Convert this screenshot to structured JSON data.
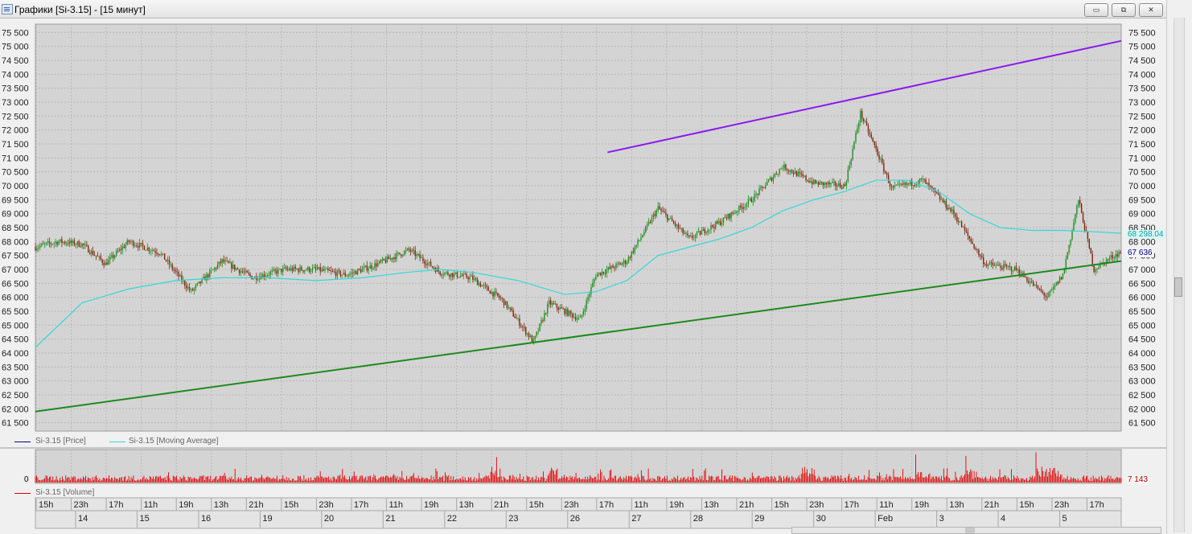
{
  "window": {
    "title": "Графики [Si-3.15] - [15 минут]",
    "buttons": {
      "minimize": "▭",
      "restore": "⧉",
      "close": "✕"
    }
  },
  "colors": {
    "plot_bg": "#d4d4d4",
    "grid": "#b8b8b8",
    "candle_up": "#1f8f1f",
    "candle_down": "#7b2a10",
    "moving_average": "#35d7d7",
    "support_line": "#1d8a1d",
    "resistance_line": "#8a19ee",
    "volume": "#e00000"
  },
  "legend": {
    "price": "Si-3.15 [Price]",
    "moving_average": "Si-3.15 [Moving Average]",
    "volume": "Si-3.15 [Volume]"
  },
  "price_axis": {
    "labels": [
      "75 500",
      "75 000",
      "74 500",
      "74 000",
      "73 500",
      "73 000",
      "72 500",
      "72 000",
      "71 500",
      "71 000",
      "70 500",
      "70 000",
      "69 500",
      "69 000",
      "68 500",
      "68 000",
      "67 500",
      "67 000",
      "66 500",
      "66 000",
      "65 500",
      "65 000",
      "64 500",
      "64 000",
      "63 500",
      "63 000",
      "62 500",
      "62 000",
      "61 500"
    ],
    "current_price": "67 636",
    "ma_value": "68 298.04"
  },
  "volume_axis": {
    "zero_label": "0",
    "current_volume": "7 143"
  },
  "time_axis": {
    "hours": [
      "15h",
      "23h",
      "17h",
      "11h",
      "19h",
      "13h",
      "21h",
      "15h",
      "23h",
      "17h",
      "11h",
      "19h",
      "13h",
      "21h",
      "15h",
      "23h",
      "17h",
      "11h",
      "19h",
      "13h",
      "21h",
      "15h",
      "23h",
      "17h",
      "11h",
      "19h",
      "13h",
      "21h",
      "15h",
      "23h",
      "17h"
    ],
    "days": [
      "14",
      "15",
      "16",
      "19",
      "20",
      "21",
      "22",
      "23",
      "26",
      "27",
      "28",
      "29",
      "30",
      "Feb",
      "3",
      "4",
      "5"
    ]
  },
  "chart_data": {
    "type": "candlestick",
    "instrument": "Si-3.15",
    "interval": "15 минут",
    "ylim": [
      61200,
      75800
    ],
    "series": [
      {
        "name": "Si-3.15 [Price]",
        "x": [
          0,
          30,
          60,
          90,
          120,
          160,
          200,
          240,
          280,
          320,
          360,
          400,
          440,
          480,
          520,
          560,
          600,
          640,
          660,
          700,
          720,
          760,
          800,
          840,
          880,
          920,
          960,
          1000,
          1040,
          1060,
          1080,
          1100,
          1140,
          1180,
          1220,
          1260,
          1300,
          1320,
          1340,
          1360,
          1380,
          1395
        ],
        "y": [
          67800,
          68000,
          67900,
          67200,
          68000,
          67600,
          66200,
          67300,
          66700,
          67000,
          67000,
          66800,
          67200,
          67700,
          66900,
          66700,
          65900,
          64400,
          65800,
          65200,
          66800,
          67300,
          69200,
          68100,
          68700,
          69500,
          70700,
          70100,
          70000,
          72600,
          71300,
          69900,
          70200,
          69000,
          67200,
          67000,
          66000,
          66800,
          69500,
          67000,
          67400,
          67636
        ]
      },
      {
        "name": "Si-3.15 [Moving Average]",
        "x": [
          0,
          60,
          120,
          180,
          240,
          300,
          360,
          420,
          480,
          520,
          560,
          620,
          680,
          720,
          760,
          800,
          840,
          880,
          920,
          960,
          1000,
          1040,
          1080,
          1120,
          1160,
          1200,
          1240,
          1280,
          1320,
          1360,
          1395
        ],
        "y": [
          64200,
          65800,
          66300,
          66600,
          66700,
          66700,
          66600,
          66700,
          66900,
          67000,
          66900,
          66600,
          66100,
          66200,
          66600,
          67500,
          67800,
          68100,
          68500,
          69100,
          69500,
          69800,
          70200,
          70200,
          69800,
          69000,
          68500,
          68400,
          68400,
          68350,
          68298
        ]
      },
      {
        "name": "support_trendline",
        "x": [
          0,
          1395
        ],
        "y": [
          61900,
          67300
        ]
      },
      {
        "name": "resistance_trendline",
        "x": [
          735,
          1395
        ],
        "y": [
          71200,
          75200
        ]
      }
    ],
    "volume": {
      "name": "Si-3.15 [Volume]",
      "last": 7143
    },
    "grid": true,
    "legend_position": "bottom-left"
  }
}
